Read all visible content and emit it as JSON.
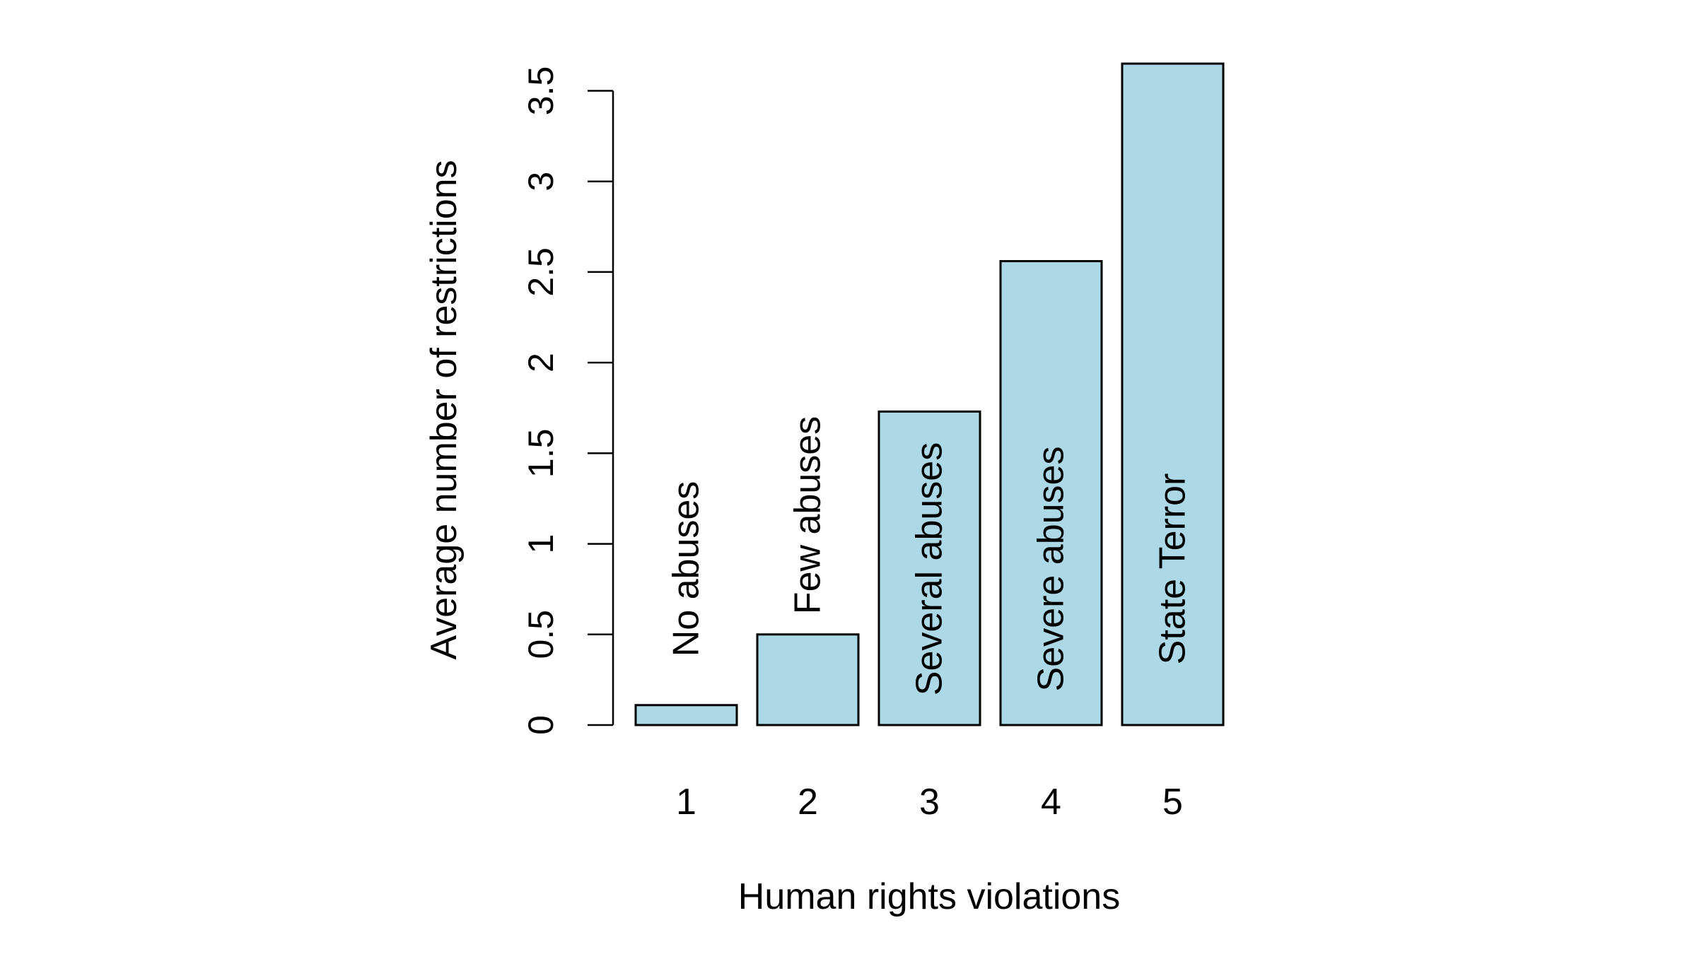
{
  "chart_data": {
    "type": "bar",
    "title": "",
    "xlabel": "Human rights violations",
    "ylabel": "Average number of restrictions",
    "categories": [
      "1",
      "2",
      "3",
      "4",
      "5"
    ],
    "values": [
      0.11,
      0.5,
      1.73,
      2.56,
      3.65
    ],
    "bar_labels": [
      "No abuses",
      "Few abuses",
      "Several abuses",
      "Severe abuses",
      "State Terror"
    ],
    "yticks": [
      0,
      0.5,
      1,
      1.5,
      2,
      2.5,
      3,
      3.5
    ],
    "ytick_labels": [
      "0",
      "0.5",
      "1",
      "1.5",
      "2",
      "2.5",
      "3",
      "3.5"
    ],
    "ylim": [
      0,
      3.5
    ],
    "grid": false,
    "colors": {
      "bar_fill": "#add8e6",
      "bar_stroke": "#000000"
    }
  }
}
